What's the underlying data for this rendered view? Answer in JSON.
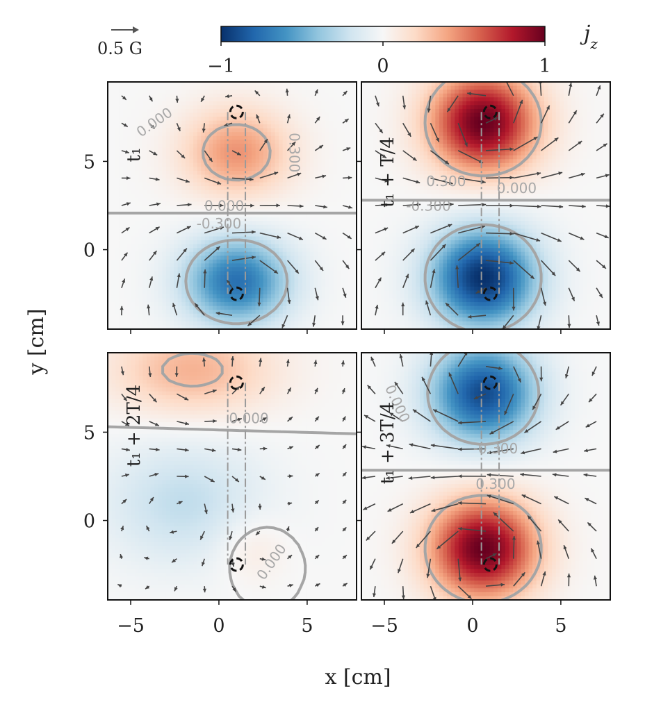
{
  "chart_data": {
    "type": "heatmap",
    "quantity": "j_z",
    "layout": "2x2 panels",
    "xlabel": "x [cm]",
    "ylabel": "y [cm]",
    "xlim": [
      -6.3,
      7.8
    ],
    "ylim": [
      -4.5,
      9.5
    ],
    "xticks": [
      -5,
      0,
      5
    ],
    "yticks": [
      0,
      5
    ],
    "xtick_labels": [
      "−5",
      "0",
      "5"
    ],
    "ytick_labels": [
      "0",
      "5"
    ],
    "colorbar": {
      "label": "j_z",
      "range": [
        -1,
        1
      ],
      "ticks": [
        -1,
        0,
        1
      ],
      "tick_labels": [
        "−1",
        "0",
        "1"
      ],
      "colormap": "RdBu_r",
      "colors": [
        "#08306b",
        "#2166ac",
        "#4393c3",
        "#92c5de",
        "#d1e5f0",
        "#f7f7f7",
        "#fddbc7",
        "#f4a582",
        "#d6604d",
        "#b2182b",
        "#67001f"
      ]
    },
    "quiver_key": {
      "label": "0.5 G"
    },
    "contour_levels": [
      -0.3,
      0.0,
      0.3
    ],
    "contour_label_texts": {
      "neg": "-0.300",
      "zero": "0.000",
      "pos": "0.300"
    },
    "probe_positions": [
      {
        "x": 1.0,
        "y": 7.8
      },
      {
        "x": 1.0,
        "y": -2.5
      }
    ],
    "panels": [
      {
        "title": "t₁",
        "sources": [
          {
            "x": 1.0,
            "y": 5.5,
            "amp": 0.45,
            "sx": 3.0,
            "sy": 2.5
          },
          {
            "x": 1.0,
            "y": -1.8,
            "amp": -0.75,
            "sx": 3.0,
            "sy": 2.5
          }
        ],
        "labels": [
          {
            "text": "0.000",
            "x": -3.5,
            "y": 7.0,
            "rot": -35
          },
          {
            "text": "0.300",
            "x": 4.0,
            "y": 5.5,
            "rot": 90
          },
          {
            "text": "0.000",
            "x": 0.3,
            "y": 2.2,
            "rot": 0
          },
          {
            "text": "-0.300",
            "x": 0.0,
            "y": 1.2,
            "rot": 0
          }
        ]
      },
      {
        "title": "t₁ + T/4",
        "sources": [
          {
            "x": 0.6,
            "y": 7.2,
            "amp": 1.0,
            "sx": 3.0,
            "sy": 2.8
          },
          {
            "x": 0.6,
            "y": -1.6,
            "amp": -1.0,
            "sx": 3.0,
            "sy": 2.8
          }
        ],
        "labels": [
          {
            "text": "0.300",
            "x": -1.5,
            "y": 3.6,
            "rot": 0
          },
          {
            "text": "0.000",
            "x": 2.5,
            "y": 3.2,
            "rot": 0
          },
          {
            "text": "-0.300",
            "x": -2.5,
            "y": 2.2,
            "rot": 0
          }
        ]
      },
      {
        "title": "t₁ + 2T/4",
        "sources": [
          {
            "x": -1.5,
            "y": 8.5,
            "amp": 0.35,
            "sx": 4.5,
            "sy": 2.5
          },
          {
            "x": -2.0,
            "y": 1.0,
            "amp": -0.25,
            "sx": 4.5,
            "sy": 3.5
          },
          {
            "x": 1.8,
            "y": -1.5,
            "amp": 0.12,
            "sx": 2.0,
            "sy": 2.0
          }
        ],
        "labels": [
          {
            "text": "0.000",
            "x": 1.7,
            "y": 5.5,
            "rot": 0
          },
          {
            "text": "0.000",
            "x": 3.2,
            "y": -2.5,
            "rot": -55
          }
        ]
      },
      {
        "title": "t₁ + 3T/4",
        "sources": [
          {
            "x": 0.6,
            "y": 7.2,
            "amp": -0.9,
            "sx": 3.0,
            "sy": 2.8
          },
          {
            "x": 0.6,
            "y": -1.6,
            "amp": 1.0,
            "sx": 3.0,
            "sy": 2.8
          }
        ],
        "labels": [
          {
            "text": "-0.300",
            "x": 1.3,
            "y": 3.8,
            "rot": 0
          },
          {
            "text": "0.300",
            "x": 1.3,
            "y": 1.8,
            "rot": 0
          },
          {
            "text": "0.000",
            "x": -4.5,
            "y": 6.5,
            "rot": 65
          }
        ]
      }
    ]
  }
}
